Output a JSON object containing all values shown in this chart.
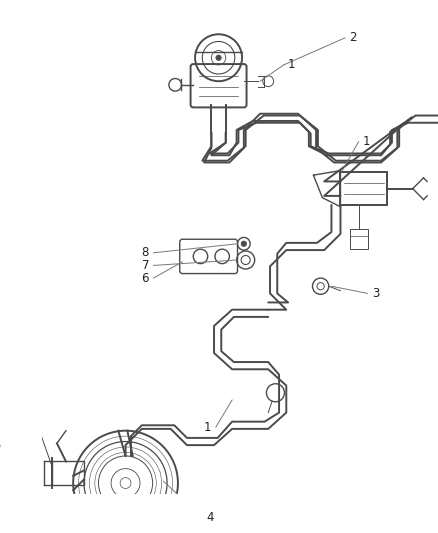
{
  "bg_color": "#ffffff",
  "line_color": "#4a4a4a",
  "ann_color": "#777777",
  "figsize": [
    4.38,
    5.33
  ],
  "dpi": 100,
  "xlim": [
    0,
    438
  ],
  "ylim": [
    0,
    533
  ]
}
